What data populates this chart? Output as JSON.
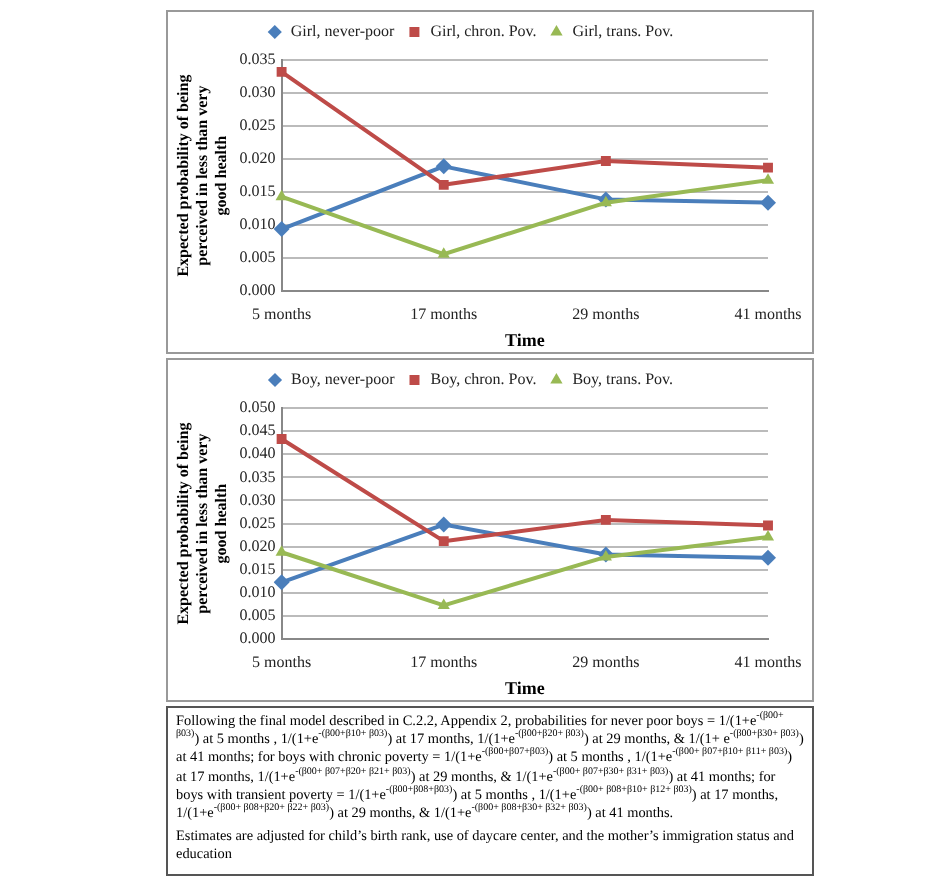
{
  "chart_data": [
    {
      "type": "line",
      "xlabel": "Time",
      "ylabel": "Expected probability of being perceived in less than very good health",
      "categories": [
        "5 months",
        "17 months",
        "29 months",
        "41 months"
      ],
      "ylim": [
        0,
        0.035
      ],
      "yticks": [
        {
          "value": 0,
          "label": "0.000"
        },
        {
          "value": 0.005,
          "label": "0.005"
        },
        {
          "value": 0.01,
          "label": "0.010"
        },
        {
          "value": 0.015,
          "label": "0.015"
        },
        {
          "value": 0.02,
          "label": "0.020"
        },
        {
          "value": 0.025,
          "label": "0.025"
        },
        {
          "value": 0.03,
          "label": "0.030"
        },
        {
          "value": 0.035,
          "label": "0.035"
        }
      ],
      "grid": "y",
      "legend": "top",
      "series": [
        {
          "name": "Girl, never-poor",
          "color": "#4a7ebb",
          "marker": "diamond",
          "values": [
            0.0094,
            0.0189,
            0.0139,
            0.0134
          ]
        },
        {
          "name": "Girl, chron. Pov.",
          "color": "#be4b48",
          "marker": "square",
          "values": [
            0.0332,
            0.0161,
            0.0197,
            0.0187
          ]
        },
        {
          "name": "Girl, trans. Pov.",
          "color": "#98b954",
          "marker": "triangle",
          "values": [
            0.0143,
            0.0056,
            0.0134,
            0.0168
          ]
        }
      ]
    },
    {
      "type": "line",
      "xlabel": "Time",
      "ylabel": "Expected probability of being perceived in less than very good health",
      "categories": [
        "5 months",
        "17 months",
        "29 months",
        "41 months"
      ],
      "ylim": [
        0,
        0.05
      ],
      "yticks": [
        {
          "value": 0,
          "label": "0.000"
        },
        {
          "value": 0.005,
          "label": "0.005"
        },
        {
          "value": 0.01,
          "label": "0.010"
        },
        {
          "value": 0.015,
          "label": "0.015"
        },
        {
          "value": 0.02,
          "label": "0.020"
        },
        {
          "value": 0.025,
          "label": "0.025"
        },
        {
          "value": 0.03,
          "label": "0.030"
        },
        {
          "value": 0.035,
          "label": "0.035"
        },
        {
          "value": 0.04,
          "label": "0.040"
        },
        {
          "value": 0.045,
          "label": "0.045"
        },
        {
          "value": 0.05,
          "label": "0.050"
        }
      ],
      "grid": "y",
      "legend": "top",
      "series": [
        {
          "name": "Boy, never-poor",
          "color": "#4a7ebb",
          "marker": "diamond",
          "values": [
            0.0123,
            0.0248,
            0.0183,
            0.0176
          ]
        },
        {
          "name": "Boy, chron. Pov.",
          "color": "#be4b48",
          "marker": "square",
          "values": [
            0.0433,
            0.0212,
            0.0258,
            0.0246
          ]
        },
        {
          "name": "Boy, trans. Pov.",
          "color": "#98b954",
          "marker": "triangle",
          "values": [
            0.0188,
            0.0073,
            0.0178,
            0.0221
          ]
        }
      ]
    },
    {
      "type": "other",
      "annotations": [
        "Following the final model described in C.2.2, Appendix 2, probabilities for never poor boys = 1/(1+e$^{-(β00+ β03)}$) at 5 months , 1/(1+e$^{-(β00+β10+ β03)}$) at 17 months, 1/(1+e$^{-(β00+β20+ β03)}$) at 29 months, & 1/(1+ e$^{-(β00+β30+ β03)}$) at 41 months; for boys with chronic poverty = 1/(1+e$^{-(β00+β07+β03)}$) at 5 months , 1/(1+e$^{-(β00+ β07+β10+ β11+ β03)}$) at 17 months, 1/(1+e$^{-(β00+ β07+β20+ β21+ β03)}$) at 29 months, & 1/(1+e$^{-(β00+ β07+β30+ β31+ β03)}$) at 41 months; for boys with transient poverty = 1/(1+e$^{-(β00+β08+β03)}$) at 5 months , 1/(1+e$^{-(β00+ β08+β10+ β12+ β03)}$) at 17 months, 1/(1+e$^{-(β00+ β08+β20+ β22+ β03)}$) at 29 months, & 1/(1+e$^{-(β00+ β08+β30+ β32+ β03)}$) at 41 months.",
        "Estimates are adjusted for child’s birth rank, use of daycare center, and the mother’s immigration status and education"
      ]
    }
  ]
}
